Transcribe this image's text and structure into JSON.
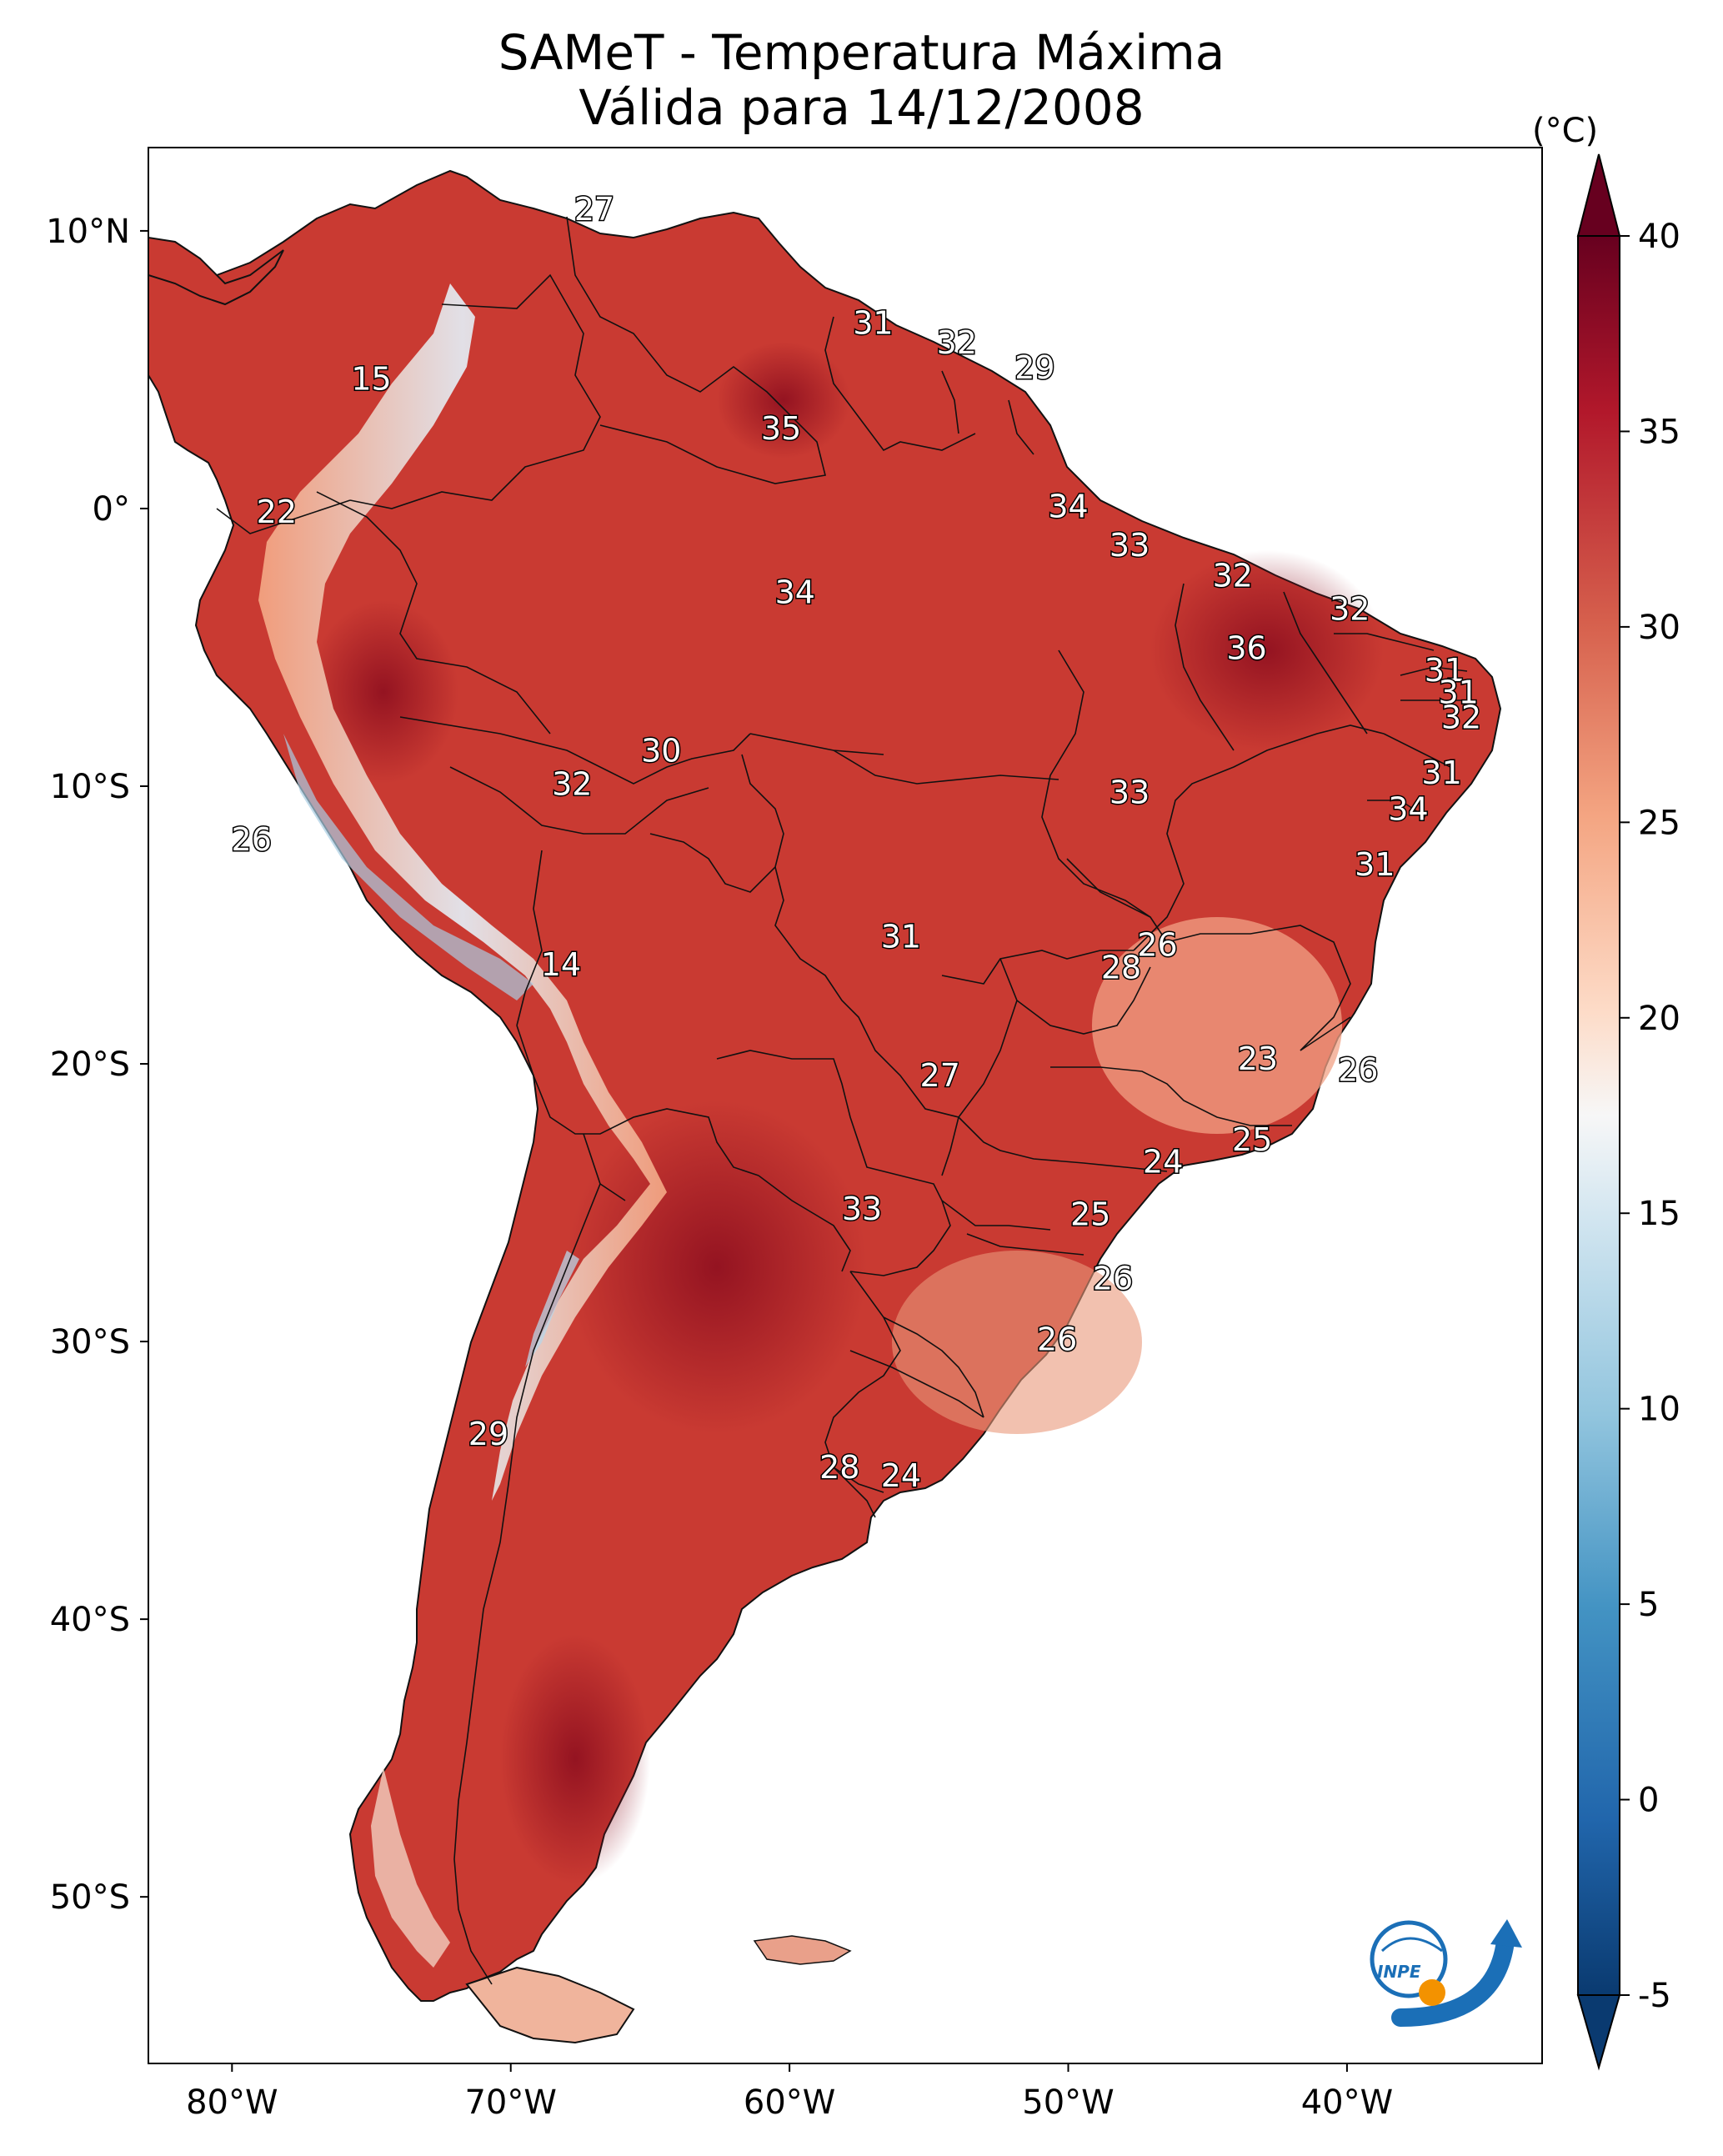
{
  "title": {
    "line1": "SAMeT - Temperatura Máxima",
    "line2": "Válida para 14/12/2008"
  },
  "map": {
    "lat_labels": [
      {
        "lat": 10,
        "text": "10°N"
      },
      {
        "lat": 0,
        "text": "0°"
      },
      {
        "lat": -10,
        "text": "10°S"
      },
      {
        "lat": -20,
        "text": "20°S"
      },
      {
        "lat": -30,
        "text": "30°S"
      },
      {
        "lat": -40,
        "text": "40°S"
      },
      {
        "lat": -50,
        "text": "50°S"
      }
    ],
    "lon_labels": [
      {
        "lon": -80,
        "text": "80°W"
      },
      {
        "lon": -70,
        "text": "70°W"
      },
      {
        "lon": -60,
        "text": "60°W"
      },
      {
        "lon": -50,
        "text": "50°W"
      },
      {
        "lon": -40,
        "text": "40°W"
      }
    ],
    "extent": {
      "lon_min": -83,
      "lon_max": -33,
      "lat_min": -56,
      "lat_max": 13
    },
    "station_values": [
      {
        "lon": -67.0,
        "lat": 10.7,
        "value": "27"
      },
      {
        "lon": -57.0,
        "lat": 6.6,
        "value": "31"
      },
      {
        "lon": -54.0,
        "lat": 5.9,
        "value": "32"
      },
      {
        "lon": -51.2,
        "lat": 5.0,
        "value": "29"
      },
      {
        "lon": -75.0,
        "lat": 4.6,
        "value": "15"
      },
      {
        "lon": -60.3,
        "lat": 2.8,
        "value": "35"
      },
      {
        "lon": -50.0,
        "lat": 0.0,
        "value": "34"
      },
      {
        "lon": -78.4,
        "lat": -0.2,
        "value": "22"
      },
      {
        "lon": -47.8,
        "lat": -1.4,
        "value": "33"
      },
      {
        "lon": -44.1,
        "lat": -2.5,
        "value": "32"
      },
      {
        "lon": -59.8,
        "lat": -3.1,
        "value": "34"
      },
      {
        "lon": -39.9,
        "lat": -3.7,
        "value": "32"
      },
      {
        "lon": -43.6,
        "lat": -5.1,
        "value": "36"
      },
      {
        "lon": -36.5,
        "lat": -5.9,
        "value": "31"
      },
      {
        "lon": -36.0,
        "lat": -6.7,
        "value": "31"
      },
      {
        "lon": -35.9,
        "lat": -7.6,
        "value": "32"
      },
      {
        "lon": -64.6,
        "lat": -8.8,
        "value": "30"
      },
      {
        "lon": -36.6,
        "lat": -9.6,
        "value": "31"
      },
      {
        "lon": -67.8,
        "lat": -10.0,
        "value": "32"
      },
      {
        "lon": -47.8,
        "lat": -10.3,
        "value": "33"
      },
      {
        "lon": -37.8,
        "lat": -10.9,
        "value": "34"
      },
      {
        "lon": -79.3,
        "lat": -12.0,
        "value": "26"
      },
      {
        "lon": -39.0,
        "lat": -12.9,
        "value": "31"
      },
      {
        "lon": -56.0,
        "lat": -15.5,
        "value": "31"
      },
      {
        "lon": -46.8,
        "lat": -15.8,
        "value": "26"
      },
      {
        "lon": -48.1,
        "lat": -16.6,
        "value": "28"
      },
      {
        "lon": -68.2,
        "lat": -16.5,
        "value": "14"
      },
      {
        "lon": -43.2,
        "lat": -19.9,
        "value": "23"
      },
      {
        "lon": -39.6,
        "lat": -20.3,
        "value": "26"
      },
      {
        "lon": -54.6,
        "lat": -20.5,
        "value": "27"
      },
      {
        "lon": -43.4,
        "lat": -22.8,
        "value": "25"
      },
      {
        "lon": -46.6,
        "lat": -23.6,
        "value": "24"
      },
      {
        "lon": -57.4,
        "lat": -25.3,
        "value": "33"
      },
      {
        "lon": -49.2,
        "lat": -25.5,
        "value": "25"
      },
      {
        "lon": -48.4,
        "lat": -27.8,
        "value": "26"
      },
      {
        "lon": -50.4,
        "lat": -30.0,
        "value": "26"
      },
      {
        "lon": -70.8,
        "lat": -33.4,
        "value": "29"
      },
      {
        "lon": -58.2,
        "lat": -34.6,
        "value": "28"
      },
      {
        "lon": -56.0,
        "lat": -34.9,
        "value": "24"
      }
    ]
  },
  "colorbar": {
    "unit": "(°C)",
    "ticks": [
      "40",
      "35",
      "30",
      "25",
      "20",
      "15",
      "10",
      "5",
      "0",
      "-5"
    ],
    "tick_values": [
      40,
      35,
      30,
      25,
      20,
      15,
      10,
      5,
      0,
      -5
    ],
    "range": [
      -5,
      40
    ],
    "colors": [
      "#0a3a70",
      "#2166ac",
      "#4393c3",
      "#92c5de",
      "#d1e5f0",
      "#f7f7f7",
      "#fddbc7",
      "#f4a582",
      "#d6604d",
      "#b2182b",
      "#67001f"
    ]
  },
  "logo": {
    "text": "INPE",
    "color_blue": "#1b6fb7",
    "color_orange": "#f39200"
  }
}
